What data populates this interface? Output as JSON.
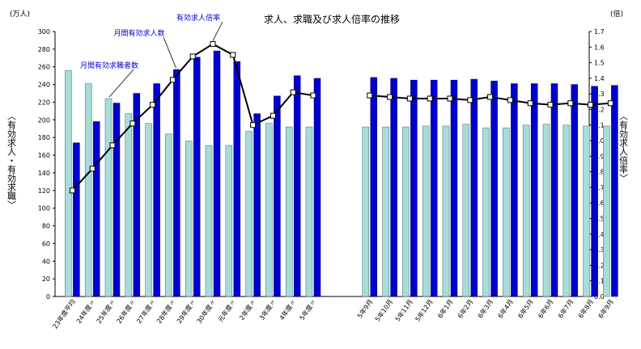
{
  "chart_data": {
    "type": "bar",
    "title": "求人、求職及び求人倍率の推移",
    "left_unit": "(万人)",
    "right_unit": "(倍)",
    "left_axis_label": "〈有効求人・有効求職〉",
    "right_axis_label": "〈有効求人倍率〉",
    "ylim_left": [
      0,
      300
    ],
    "left_ticks": [
      "0",
      "20",
      "40",
      "60",
      "80",
      "100",
      "120",
      "140",
      "160",
      "180",
      "200",
      "220",
      "240",
      "260",
      "280",
      "300"
    ],
    "ylim_right": [
      0,
      1.7
    ],
    "right_ticks": [
      "0.0",
      "0.1",
      "0.2",
      "0.3",
      "0.4",
      "0.5",
      "0.6",
      "0.7",
      "0.8",
      "0.9",
      "1.0",
      "1.1",
      "1.2",
      "1.3",
      "1.4",
      "1.5",
      "1.6",
      "1.7"
    ],
    "categories": [
      "23年度平均",
      "24年度〃",
      "25年度〃",
      "26年度〃",
      "27年度〃",
      "28年度〃",
      "29年度〃",
      "30年度〃",
      "元年度〃",
      "2年度〃",
      "3年度〃",
      "4年度〃",
      "5年度〃",
      "5年9月",
      "5年10月",
      "5年11月",
      "5年12月",
      "6年1月",
      "6年2月",
      "6年3月",
      "6年4月",
      "6年5月",
      "6年6月",
      "6年7月",
      "6年8月",
      "6年9月"
    ],
    "series": [
      {
        "name": "月間有効求職者数",
        "type": "bar",
        "axis": "left",
        "color": "#a8dcd8",
        "values": [
          256,
          241,
          224,
          207,
          196,
          184,
          176,
          171,
          171,
          187,
          196,
          192,
          192,
          192,
          192,
          192,
          193,
          193,
          195,
          191,
          191,
          194,
          195,
          194,
          193,
          193
        ]
      },
      {
        "name": "月間有効求人数",
        "type": "bar",
        "axis": "left",
        "color": "#0000cc",
        "values": [
          174,
          198,
          219,
          230,
          241,
          257,
          271,
          278,
          266,
          207,
          227,
          250,
          247,
          248,
          247,
          245,
          245,
          245,
          246,
          244,
          241,
          241,
          241,
          240,
          238,
          239
        ]
      },
      {
        "name": "有効求人倍率",
        "type": "line",
        "axis": "right",
        "color": "#000000",
        "values": [
          0.68,
          0.82,
          0.97,
          1.11,
          1.23,
          1.39,
          1.54,
          1.62,
          1.55,
          1.1,
          1.16,
          1.31,
          1.29,
          1.29,
          1.28,
          1.27,
          1.27,
          1.27,
          1.26,
          1.28,
          1.26,
          1.24,
          1.23,
          1.24,
          1.23,
          1.24
        ]
      }
    ],
    "grid": false,
    "legend": "callouts"
  }
}
